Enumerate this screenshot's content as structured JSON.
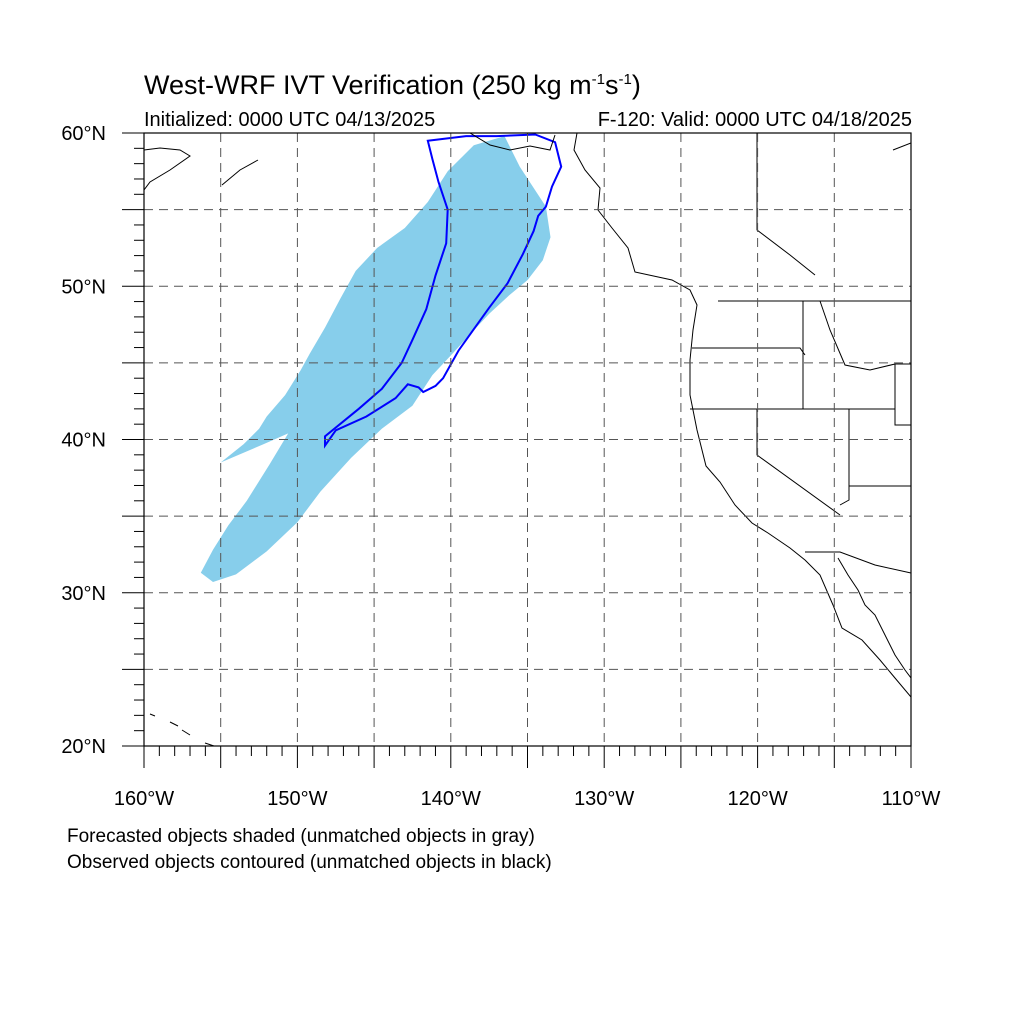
{
  "header": {
    "title_main": "West-WRF IVT Verification (250 kg m",
    "title_exp1": "-1",
    "title_mid": "s",
    "title_exp2": "-1",
    "title_end": ")",
    "initialized": "Initialized: 0000 UTC 04/13/2025",
    "valid": "F-120: Valid: 0000 UTC 04/18/2025"
  },
  "map": {
    "lon_range": [
      -160,
      -110
    ],
    "lat_range": [
      20,
      60
    ],
    "lat_labels": [
      "20°N",
      "30°N",
      "40°N",
      "50°N",
      "60°N"
    ],
    "lon_labels": [
      "160°W",
      "150°W",
      "140°W",
      "130°W",
      "120°W",
      "110°W"
    ],
    "gridlines": "dashed every 5 degrees",
    "colors": {
      "forecast_fill": "#87ceeb",
      "observed_contour": "#0000ff",
      "coastline": "#000000",
      "grid": "#555555"
    },
    "forecast_object": {
      "status": "matched",
      "outline_lonlat": [
        [
          -135.5,
          57.8
        ],
        [
          -136.5,
          59.8
        ],
        [
          -138.5,
          59.2
        ],
        [
          -140.2,
          57.5
        ],
        [
          -141.5,
          55.5
        ],
        [
          -143.0,
          53.8
        ],
        [
          -144.8,
          52.5
        ],
        [
          -146.2,
          51.0
        ],
        [
          -147.2,
          49.2
        ],
        [
          -148.2,
          47.3
        ],
        [
          -149.2,
          45.6
        ],
        [
          -149.8,
          44.5
        ],
        [
          -150.8,
          42.9
        ],
        [
          -152.0,
          41.5
        ],
        [
          -152.5,
          40.7
        ],
        [
          -153.5,
          39.7
        ],
        [
          -155.0,
          38.5
        ],
        [
          -152.2,
          39.7
        ],
        [
          -150.6,
          40.4
        ],
        [
          -151.8,
          38.4
        ],
        [
          -153.3,
          36.0
        ],
        [
          -154.5,
          34.4
        ],
        [
          -155.5,
          32.8
        ],
        [
          -156.3,
          31.3
        ],
        [
          -155.5,
          30.7
        ],
        [
          -154.0,
          31.2
        ],
        [
          -152.0,
          32.7
        ],
        [
          -150.0,
          34.6
        ],
        [
          -148.5,
          36.6
        ],
        [
          -146.5,
          38.8
        ],
        [
          -144.5,
          40.7
        ],
        [
          -142.5,
          42.2
        ],
        [
          -141.2,
          44.2
        ],
        [
          -139.8,
          45.7
        ],
        [
          -138.8,
          46.8
        ],
        [
          -137.5,
          48.2
        ],
        [
          -136.2,
          49.4
        ],
        [
          -135.0,
          50.4
        ],
        [
          -134.0,
          51.7
        ],
        [
          -133.5,
          53.2
        ],
        [
          -133.8,
          55.2
        ]
      ]
    },
    "observed_object": {
      "status": "matched",
      "outline_lonlat": [
        [
          -140.2,
          55.0
        ],
        [
          -140.8,
          56.8
        ],
        [
          -141.2,
          58.3
        ],
        [
          -141.5,
          59.5
        ],
        [
          -139.0,
          59.8
        ],
        [
          -137.0,
          59.8
        ],
        [
          -134.5,
          59.9
        ],
        [
          -133.2,
          59.4
        ],
        [
          -132.8,
          57.8
        ],
        [
          -133.4,
          56.5
        ],
        [
          -133.8,
          55.2
        ],
        [
          -134.3,
          54.6
        ],
        [
          -134.6,
          53.6
        ],
        [
          -135.3,
          52.1
        ],
        [
          -136.3,
          50.2
        ],
        [
          -137.5,
          48.6
        ],
        [
          -138.5,
          47.2
        ],
        [
          -139.5,
          45.8
        ],
        [
          -140.0,
          44.9
        ],
        [
          -140.5,
          44.0
        ],
        [
          -141.0,
          43.5
        ],
        [
          -141.8,
          43.1
        ],
        [
          -142.1,
          43.4
        ],
        [
          -142.8,
          43.6
        ],
        [
          -143.6,
          42.7
        ],
        [
          -145.5,
          41.5
        ],
        [
          -147.5,
          40.6
        ],
        [
          -148.2,
          39.6
        ],
        [
          -148.2,
          40.2
        ],
        [
          -146.0,
          42.0
        ],
        [
          -144.5,
          43.3
        ],
        [
          -143.2,
          45.0
        ],
        [
          -142.5,
          46.5
        ],
        [
          -141.6,
          48.5
        ],
        [
          -141.0,
          50.7
        ],
        [
          -140.3,
          52.8
        ]
      ]
    }
  },
  "footer": {
    "note1": "Forecasted objects shaded (unmatched objects in gray)",
    "note2": "Observed objects contoured (unmatched objects in black)"
  }
}
